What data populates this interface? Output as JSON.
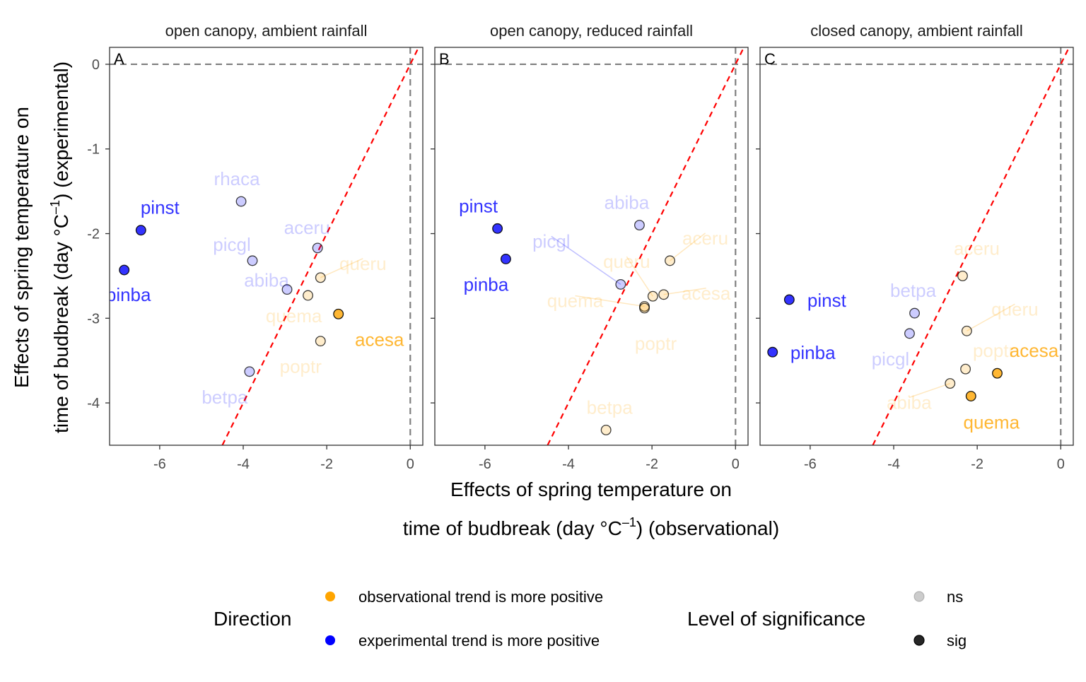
{
  "chart_data": {
    "type": "scatter",
    "ylabel_line1": "Effects of spring temperature on",
    "ylabel_line2_pre": "time of budbreak (day °C",
    "ylabel_line2_sup": "–1",
    "ylabel_line2_post": ") (experimental)",
    "xlabel_line1": "Effects of spring temperature on",
    "xlabel_line2_pre": "time of budbreak (day °C",
    "xlabel_line2_sup": "–1",
    "xlabel_line2_post": ") (observational)",
    "x_ticks": [
      "-6",
      "-4",
      "-2",
      "0"
    ],
    "y_ticks": [
      "0",
      "-1",
      "-2",
      "-3",
      "-4"
    ],
    "xlim": [
      -7.2,
      0.3
    ],
    "ylim": [
      -4.5,
      0.2
    ],
    "reference_lines": {
      "horizontal_y": 0,
      "vertical_x": 0,
      "one_to_one": true
    },
    "legend": {
      "direction_title": "Direction",
      "direction_items": [
        {
          "label": "observational trend is more positive",
          "color": "#FFA500"
        },
        {
          "label": "experimental trend is more positive",
          "color": "#0000FF"
        }
      ],
      "significance_title": "Level of significance",
      "significance_items": [
        {
          "label": "ns",
          "alpha": 0.25
        },
        {
          "label": "sig",
          "alpha": 0.85
        }
      ]
    },
    "colors": {
      "obs_more_positive": "#FFA500",
      "exp_more_positive": "#0000FF",
      "one_to_one": "#FF0000",
      "reference": "#808080"
    },
    "panels": [
      {
        "tag": "A",
        "strip": "open canopy, ambient rainfall",
        "points": [
          {
            "label": "pinst",
            "x": -6.45,
            "y": -1.96,
            "dir": "exp",
            "sig": true
          },
          {
            "label": "pinba",
            "x": -6.85,
            "y": -2.43,
            "dir": "exp",
            "sig": true
          },
          {
            "label": "rhaca",
            "x": -4.05,
            "y": -1.62,
            "dir": "exp",
            "sig": false
          },
          {
            "label": "picgl",
            "x": -3.78,
            "y": -2.32,
            "dir": "exp",
            "sig": false
          },
          {
            "label": "abiba",
            "x": -2.95,
            "y": -2.66,
            "dir": "exp",
            "sig": false
          },
          {
            "label": "aceru",
            "x": -2.22,
            "y": -2.17,
            "dir": "exp",
            "sig": false
          },
          {
            "label": "betpa",
            "x": -3.85,
            "y": -3.63,
            "dir": "exp",
            "sig": false
          },
          {
            "label": "queru",
            "x": -2.15,
            "y": -2.52,
            "dir": "obs",
            "sig": false
          },
          {
            "label": "quema",
            "x": -2.45,
            "y": -2.73,
            "dir": "obs",
            "sig": false
          },
          {
            "label": "poptr",
            "x": -2.15,
            "y": -3.27,
            "dir": "obs",
            "sig": false
          },
          {
            "label": "acesa",
            "x": -1.72,
            "y": -2.95,
            "dir": "obs",
            "sig": true
          }
        ]
      },
      {
        "tag": "B",
        "strip": "open canopy, reduced rainfall",
        "points": [
          {
            "label": "pinst",
            "x": -5.7,
            "y": -1.94,
            "dir": "exp",
            "sig": true
          },
          {
            "label": "pinba",
            "x": -5.5,
            "y": -2.3,
            "dir": "exp",
            "sig": true
          },
          {
            "label": "abiba",
            "x": -2.3,
            "y": -1.9,
            "dir": "exp",
            "sig": false
          },
          {
            "label": "picgl",
            "x": -2.75,
            "y": -2.6,
            "dir": "exp",
            "sig": false
          },
          {
            "label": "queru",
            "x": -1.98,
            "y": -2.74,
            "dir": "obs",
            "sig": false
          },
          {
            "label": "aceru",
            "x": -1.57,
            "y": -2.32,
            "dir": "obs",
            "sig": false
          },
          {
            "label": "acesa",
            "x": -1.72,
            "y": -2.72,
            "dir": "obs",
            "sig": false
          },
          {
            "label": "quema",
            "x": -2.18,
            "y": -2.86,
            "dir": "obs",
            "sig": false
          },
          {
            "label": "poptr",
            "x": -2.18,
            "y": -2.88,
            "dir": "obs",
            "sig": false
          },
          {
            "label": "betpa",
            "x": -3.1,
            "y": -4.32,
            "dir": "obs",
            "sig": false
          }
        ]
      },
      {
        "tag": "C",
        "strip": "closed canopy, ambient rainfall",
        "points": [
          {
            "label": "pinst",
            "x": -6.5,
            "y": -2.78,
            "dir": "exp",
            "sig": true
          },
          {
            "label": "pinba",
            "x": -6.9,
            "y": -3.4,
            "dir": "exp",
            "sig": true
          },
          {
            "label": "betpa",
            "x": -3.5,
            "y": -2.94,
            "dir": "exp",
            "sig": false
          },
          {
            "label": "picgl",
            "x": -3.62,
            "y": -3.18,
            "dir": "exp",
            "sig": false
          },
          {
            "label": "aceru",
            "x": -2.35,
            "y": -2.5,
            "dir": "obs",
            "sig": false
          },
          {
            "label": "queru",
            "x": -2.25,
            "y": -3.15,
            "dir": "obs",
            "sig": false
          },
          {
            "label": "poptr",
            "x": -2.28,
            "y": -3.6,
            "dir": "obs",
            "sig": false
          },
          {
            "label": "abiba",
            "x": -2.65,
            "y": -3.77,
            "dir": "obs",
            "sig": false
          },
          {
            "label": "acesa",
            "x": -1.52,
            "y": -3.65,
            "dir": "obs",
            "sig": true
          },
          {
            "label": "quema",
            "x": -2.15,
            "y": -3.92,
            "dir": "obs",
            "sig": true
          }
        ]
      }
    ]
  }
}
